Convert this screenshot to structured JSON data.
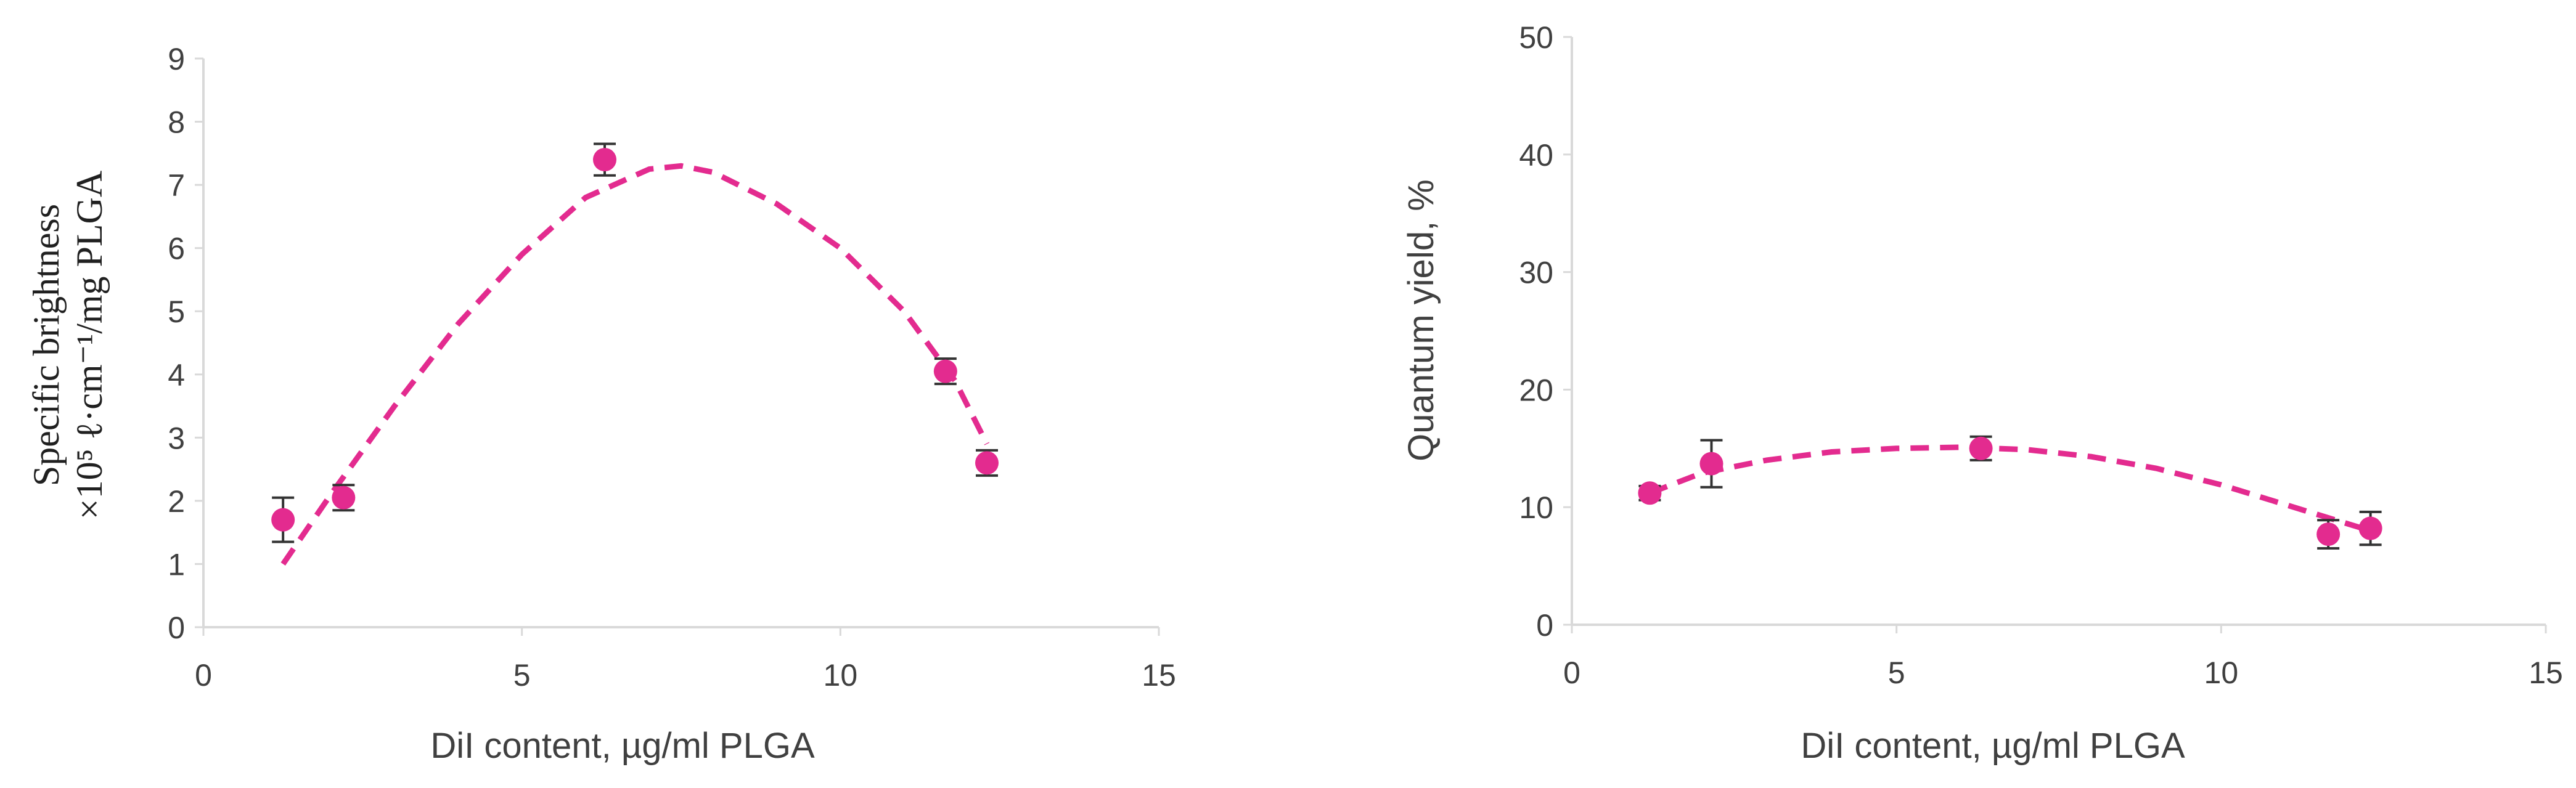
{
  "chart_data": [
    {
      "type": "scatter",
      "xlabel": "DiI content, µg/ml PLGA",
      "ylabel_line1": "Specific brightness",
      "ylabel_line2": "×10⁵ ℓ·cm⁻¹/mg PLGA",
      "xlim": [
        0,
        15
      ],
      "ylim": [
        0,
        9
      ],
      "xticks": [
        "0",
        "5",
        "10",
        "15"
      ],
      "yticks": [
        "0",
        "1",
        "2",
        "3",
        "4",
        "5",
        "6",
        "7",
        "8",
        "9"
      ],
      "marker_color": "#e32b8f",
      "points": [
        {
          "x": 1.25,
          "y": 1.7,
          "err": 0.35
        },
        {
          "x": 2.2,
          "y": 2.05,
          "err": 0.2
        },
        {
          "x": 6.3,
          "y": 7.4,
          "err": 0.25
        },
        {
          "x": 11.65,
          "y": 4.05,
          "err": 0.2
        },
        {
          "x": 12.3,
          "y": 2.6,
          "err": 0.2
        }
      ],
      "trendline": {
        "style": "dashed",
        "x": [
          1.25,
          2,
          3,
          4,
          5,
          6,
          7,
          7.5,
          8,
          9,
          10,
          11,
          11.8,
          12.3
        ],
        "y": [
          1.0,
          2.1,
          3.5,
          4.8,
          5.9,
          6.8,
          7.25,
          7.3,
          7.2,
          6.7,
          6.0,
          5.0,
          3.9,
          2.9
        ]
      }
    },
    {
      "type": "scatter",
      "xlabel": "DiI content, µg/ml PLGA",
      "ylabel": "Quantum yield, %",
      "xlim": [
        0,
        15
      ],
      "ylim": [
        0,
        50
      ],
      "xticks": [
        "0",
        "5",
        "10",
        "15"
      ],
      "yticks": [
        "0",
        "10",
        "20",
        "30",
        "40",
        "50"
      ],
      "marker_color": "#e32b8f",
      "points": [
        {
          "x": 1.2,
          "y": 11.2,
          "err": 0.6
        },
        {
          "x": 2.15,
          "y": 13.7,
          "err": 2.0
        },
        {
          "x": 6.3,
          "y": 15.0,
          "err": 1.0
        },
        {
          "x": 11.65,
          "y": 7.7,
          "err": 1.2
        },
        {
          "x": 12.3,
          "y": 8.2,
          "err": 1.4
        }
      ],
      "trendline": {
        "style": "dashed",
        "x": [
          1.2,
          2,
          3,
          4,
          5,
          6,
          7,
          8,
          9,
          10,
          11,
          12,
          12.3
        ],
        "y": [
          11.2,
          12.9,
          14.0,
          14.7,
          15.0,
          15.1,
          14.9,
          14.3,
          13.3,
          11.9,
          10.2,
          8.5,
          8.0
        ]
      }
    }
  ]
}
